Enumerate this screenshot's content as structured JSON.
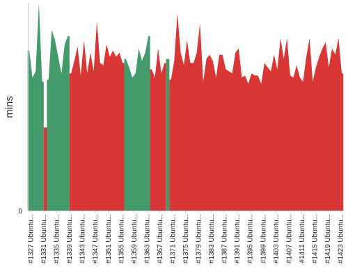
{
  "chart_data": {
    "type": "area",
    "title": "",
    "xlabel": "",
    "ylabel": "mins",
    "y_ticks": [
      "0"
    ],
    "grid": false,
    "legend": "none",
    "colors": {
      "pass": "#439a6a",
      "fail": "#d93636",
      "axis": "#cccccc"
    },
    "ylim": [
      0,
      100
    ],
    "tick_labels": [
      "#1327 Ubuntu...",
      "#1331 Ubuntu...",
      "#1335 Ubuntu...",
      "#1339 Ubuntu...",
      "#1343 Ubuntu...",
      "#1347 Ubuntu...",
      "#1351 Ubuntu...",
      "#1355 Ubuntu...",
      "#1359 Ubuntu...",
      "#1363 Ubuntu...",
      "#1367 Ubuntu...",
      "#1371 Ubuntu...",
      "#1375 Ubuntu...",
      "#1379 Ubuntu...",
      "#1383 Ubuntu...",
      "#1387 Ubuntu...",
      "#1391 Ubuntu...",
      "#1395 Ubuntu...",
      "#1399 Ubuntu...",
      "#1403 Ubuntu...",
      "#1407 Ubuntu...",
      "#1411 Ubuntu...",
      "#1415 Ubuntu...",
      "#1419 Ubuntu...",
      "#1423 Ubuntu..."
    ],
    "values": [
      77,
      64,
      67,
      100,
      62,
      40,
      63,
      87,
      82,
      74,
      66,
      80,
      84,
      66,
      72,
      79,
      65,
      82,
      66,
      76,
      67,
      91,
      71,
      70,
      80,
      74,
      77,
      74,
      76,
      71,
      73,
      69,
      64,
      66,
      78,
      72,
      76,
      84,
      68,
      64,
      78,
      66,
      71,
      73,
      63,
      72,
      95,
      76,
      70,
      82,
      71,
      71,
      76,
      90,
      62,
      73,
      75,
      72,
      64,
      75,
      75,
      68,
      67,
      66,
      76,
      78,
      64,
      65,
      61,
      66,
      65,
      65,
      61,
      71,
      69,
      67,
      75,
      68,
      83,
      73,
      83,
      65,
      64,
      70,
      64,
      62,
      74,
      83,
      62,
      69,
      74,
      78,
      81,
      69,
      78,
      75,
      83,
      66
    ],
    "status": [
      "pass",
      "pass",
      "pass",
      "pass",
      "pass",
      "fail",
      "pass",
      "pass",
      "pass",
      "pass",
      "pass",
      "pass",
      "pass",
      "fail",
      "fail",
      "fail",
      "fail",
      "fail",
      "fail",
      "fail",
      "fail",
      "fail",
      "fail",
      "fail",
      "fail",
      "fail",
      "fail",
      "fail",
      "fail",
      "fail",
      "pass",
      "pass",
      "pass",
      "pass",
      "pass",
      "pass",
      "pass",
      "pass",
      "fail",
      "fail",
      "fail",
      "fail",
      "fail",
      "pass",
      "fail",
      "fail",
      "fail",
      "fail",
      "fail",
      "fail",
      "fail",
      "fail",
      "fail",
      "fail",
      "fail",
      "fail",
      "fail",
      "fail",
      "fail",
      "fail",
      "fail",
      "fail",
      "fail",
      "fail",
      "fail",
      "fail",
      "fail",
      "fail",
      "fail",
      "fail",
      "fail",
      "fail",
      "fail",
      "fail",
      "fail",
      "fail",
      "fail",
      "fail",
      "fail",
      "fail",
      "fail",
      "fail",
      "fail",
      "fail",
      "fail",
      "fail",
      "fail",
      "fail",
      "fail",
      "fail",
      "fail",
      "fail",
      "fail",
      "fail",
      "fail",
      "fail",
      "fail",
      "fail"
    ]
  }
}
